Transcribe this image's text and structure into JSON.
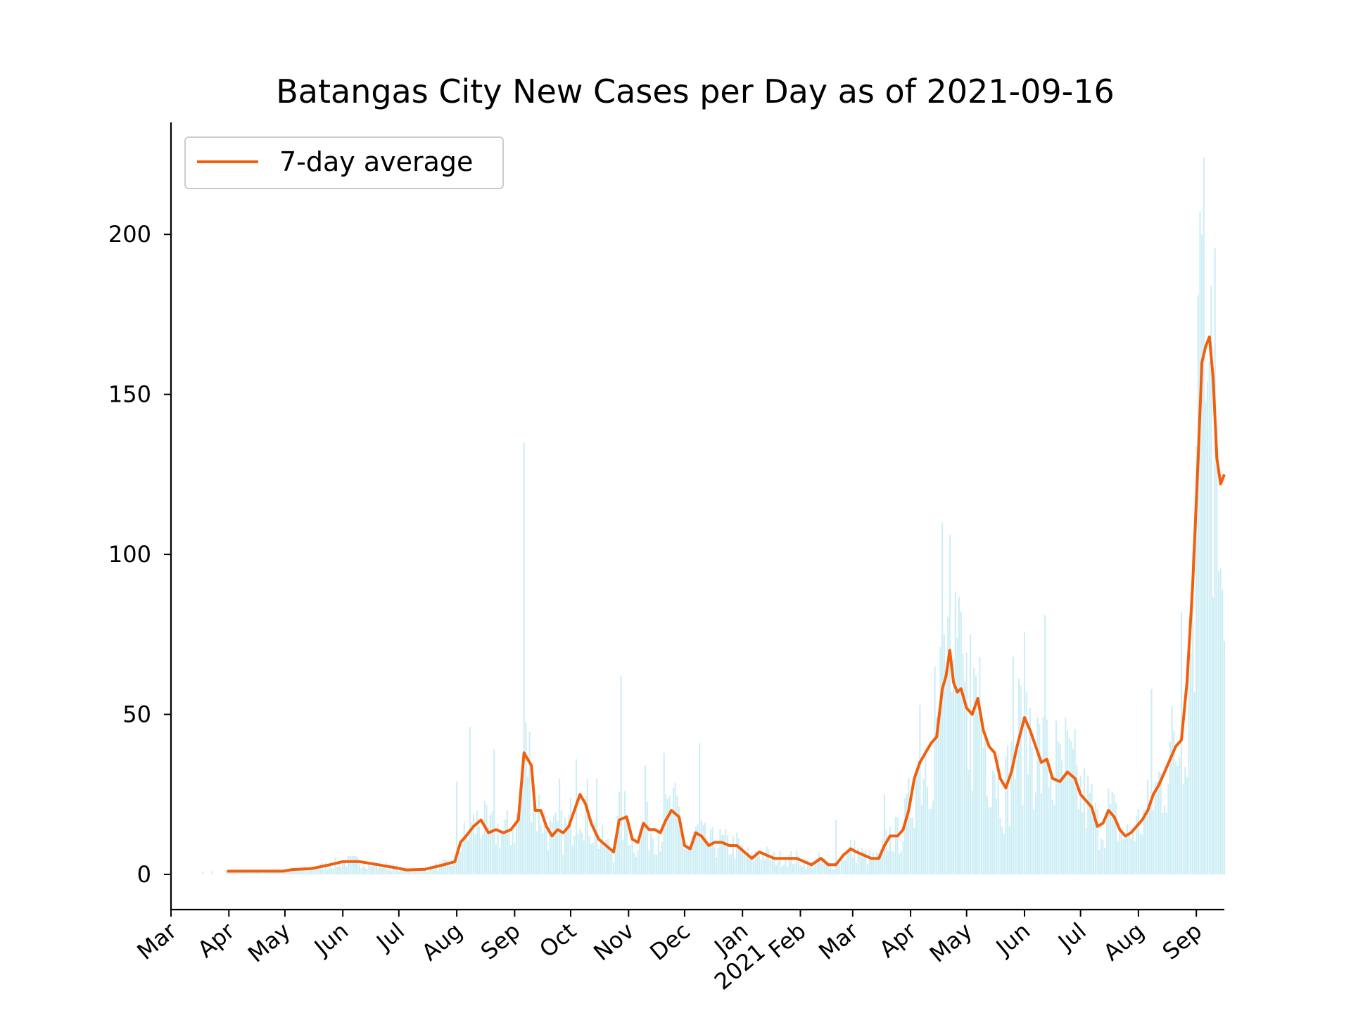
{
  "chart_data": {
    "type": "bar",
    "title": "Batangas City New Cases per Day as of 2021-09-16",
    "xlabel": "",
    "ylabel": "",
    "x_range": [
      "2020-03-01",
      "2021-09-16"
    ],
    "ylim": [
      -11,
      235
    ],
    "y_ticks": [
      0,
      50,
      100,
      150,
      200
    ],
    "x_ticks": [
      {
        "date": "2020-03-01",
        "label": "Mar"
      },
      {
        "date": "2020-04-01",
        "label": "Apr"
      },
      {
        "date": "2020-05-01",
        "label": "May"
      },
      {
        "date": "2020-06-01",
        "label": "Jun"
      },
      {
        "date": "2020-07-01",
        "label": "Jul"
      },
      {
        "date": "2020-08-01",
        "label": "Aug"
      },
      {
        "date": "2020-09-01",
        "label": "Sep"
      },
      {
        "date": "2020-10-01",
        "label": "Oct"
      },
      {
        "date": "2020-11-01",
        "label": "Nov"
      },
      {
        "date": "2020-12-01",
        "label": "Dec"
      },
      {
        "date": "2021-01-01",
        "label": "Jan\n2021"
      },
      {
        "date": "2021-02-01",
        "label": "Feb"
      },
      {
        "date": "2021-03-01",
        "label": "Mar"
      },
      {
        "date": "2021-04-01",
        "label": "Apr"
      },
      {
        "date": "2021-05-01",
        "label": "May"
      },
      {
        "date": "2021-06-01",
        "label": "Jun"
      },
      {
        "date": "2021-07-01",
        "label": "Jul"
      },
      {
        "date": "2021-08-01",
        "label": "Aug"
      },
      {
        "date": "2021-09-01",
        "label": "Sep"
      }
    ],
    "grid": false,
    "legend": {
      "position": "top-left",
      "entries": [
        "7-day average"
      ]
    },
    "colors": {
      "daily_bars": "#cdeef5",
      "average_line": "#f25f0c"
    },
    "series": [
      {
        "name": "7-day average",
        "kind": "line",
        "points": [
          [
            "2020-03-31",
            1
          ],
          [
            "2020-04-15",
            1
          ],
          [
            "2020-04-30",
            1
          ],
          [
            "2020-05-05",
            1.5
          ],
          [
            "2020-05-15",
            1.8
          ],
          [
            "2020-05-25",
            3
          ],
          [
            "2020-06-01",
            4
          ],
          [
            "2020-06-10",
            4
          ],
          [
            "2020-06-20",
            3
          ],
          [
            "2020-06-30",
            2
          ],
          [
            "2020-07-05",
            1.4
          ],
          [
            "2020-07-15",
            1.6
          ],
          [
            "2020-07-25",
            3
          ],
          [
            "2020-07-31",
            4
          ],
          [
            "2020-08-03",
            10
          ],
          [
            "2020-08-06",
            12
          ],
          [
            "2020-08-10",
            15
          ],
          [
            "2020-08-14",
            17
          ],
          [
            "2020-08-18",
            13
          ],
          [
            "2020-08-22",
            14
          ],
          [
            "2020-08-26",
            13
          ],
          [
            "2020-08-30",
            14
          ],
          [
            "2020-09-03",
            17
          ],
          [
            "2020-09-06",
            38
          ],
          [
            "2020-09-08",
            36
          ],
          [
            "2020-09-10",
            34
          ],
          [
            "2020-09-12",
            20
          ],
          [
            "2020-09-15",
            20
          ],
          [
            "2020-09-18",
            15
          ],
          [
            "2020-09-21",
            12
          ],
          [
            "2020-09-24",
            14
          ],
          [
            "2020-09-27",
            13
          ],
          [
            "2020-09-30",
            15
          ],
          [
            "2020-10-03",
            20
          ],
          [
            "2020-10-06",
            25
          ],
          [
            "2020-10-09",
            22
          ],
          [
            "2020-10-12",
            16
          ],
          [
            "2020-10-16",
            11
          ],
          [
            "2020-10-20",
            9
          ],
          [
            "2020-10-24",
            7
          ],
          [
            "2020-10-27",
            17
          ],
          [
            "2020-10-31",
            18
          ],
          [
            "2020-11-03",
            11
          ],
          [
            "2020-11-06",
            10
          ],
          [
            "2020-11-09",
            16
          ],
          [
            "2020-11-12",
            14
          ],
          [
            "2020-11-15",
            14
          ],
          [
            "2020-11-18",
            13
          ],
          [
            "2020-11-21",
            17
          ],
          [
            "2020-11-24",
            20
          ],
          [
            "2020-11-28",
            18
          ],
          [
            "2020-12-01",
            9
          ],
          [
            "2020-12-04",
            8
          ],
          [
            "2020-12-07",
            13
          ],
          [
            "2020-12-10",
            12
          ],
          [
            "2020-12-14",
            9
          ],
          [
            "2020-12-17",
            10
          ],
          [
            "2020-12-21",
            10
          ],
          [
            "2020-12-25",
            9
          ],
          [
            "2020-12-29",
            9
          ],
          [
            "2021-01-02",
            7
          ],
          [
            "2021-01-06",
            5
          ],
          [
            "2021-01-10",
            7
          ],
          [
            "2021-01-14",
            6
          ],
          [
            "2021-01-18",
            5
          ],
          [
            "2021-01-22",
            5
          ],
          [
            "2021-01-26",
            5
          ],
          [
            "2021-01-30",
            5
          ],
          [
            "2021-02-03",
            4
          ],
          [
            "2021-02-07",
            3
          ],
          [
            "2021-02-12",
            5
          ],
          [
            "2021-02-16",
            3
          ],
          [
            "2021-02-20",
            3
          ],
          [
            "2021-02-24",
            6
          ],
          [
            "2021-02-28",
            8
          ],
          [
            "2021-03-03",
            7
          ],
          [
            "2021-03-07",
            6
          ],
          [
            "2021-03-11",
            5
          ],
          [
            "2021-03-15",
            5
          ],
          [
            "2021-03-18",
            9
          ],
          [
            "2021-03-21",
            12
          ],
          [
            "2021-03-25",
            12
          ],
          [
            "2021-03-28",
            14
          ],
          [
            "2021-03-31",
            20
          ],
          [
            "2021-04-03",
            30
          ],
          [
            "2021-04-06",
            35
          ],
          [
            "2021-04-09",
            38
          ],
          [
            "2021-04-12",
            41
          ],
          [
            "2021-04-15",
            43
          ],
          [
            "2021-04-18",
            58
          ],
          [
            "2021-04-20",
            62
          ],
          [
            "2021-04-22",
            70
          ],
          [
            "2021-04-24",
            60
          ],
          [
            "2021-04-26",
            57
          ],
          [
            "2021-04-28",
            58
          ],
          [
            "2021-05-01",
            52
          ],
          [
            "2021-05-04",
            50
          ],
          [
            "2021-05-07",
            55
          ],
          [
            "2021-05-10",
            45
          ],
          [
            "2021-05-13",
            40
          ],
          [
            "2021-05-16",
            38
          ],
          [
            "2021-05-19",
            30
          ],
          [
            "2021-05-22",
            27
          ],
          [
            "2021-05-25",
            32
          ],
          [
            "2021-05-28",
            40
          ],
          [
            "2021-06-01",
            49
          ],
          [
            "2021-06-04",
            45
          ],
          [
            "2021-06-07",
            40
          ],
          [
            "2021-06-10",
            35
          ],
          [
            "2021-06-13",
            36
          ],
          [
            "2021-06-16",
            30
          ],
          [
            "2021-06-20",
            29
          ],
          [
            "2021-06-24",
            32
          ],
          [
            "2021-06-28",
            30
          ],
          [
            "2021-07-01",
            25
          ],
          [
            "2021-07-04",
            23
          ],
          [
            "2021-07-07",
            21
          ],
          [
            "2021-07-10",
            15
          ],
          [
            "2021-07-13",
            16
          ],
          [
            "2021-07-16",
            20
          ],
          [
            "2021-07-19",
            18
          ],
          [
            "2021-07-22",
            14
          ],
          [
            "2021-07-25",
            12
          ],
          [
            "2021-07-28",
            13
          ],
          [
            "2021-07-31",
            15
          ],
          [
            "2021-08-03",
            17
          ],
          [
            "2021-08-06",
            20
          ],
          [
            "2021-08-09",
            25
          ],
          [
            "2021-08-12",
            28
          ],
          [
            "2021-08-15",
            32
          ],
          [
            "2021-08-18",
            36
          ],
          [
            "2021-08-21",
            40
          ],
          [
            "2021-08-24",
            42
          ],
          [
            "2021-08-27",
            60
          ],
          [
            "2021-08-30",
            90
          ],
          [
            "2021-09-02",
            130
          ],
          [
            "2021-09-04",
            160
          ],
          [
            "2021-09-06",
            165
          ],
          [
            "2021-09-08",
            168
          ],
          [
            "2021-09-10",
            155
          ],
          [
            "2021-09-12",
            130
          ],
          [
            "2021-09-14",
            122
          ],
          [
            "2021-09-16",
            125
          ]
        ]
      },
      {
        "name": "",
        "kind": "bars",
        "spikes": [
          [
            "2020-08-01",
            29
          ],
          [
            "2020-08-08",
            46
          ],
          [
            "2020-08-21",
            39
          ],
          [
            "2020-09-06",
            135
          ],
          [
            "2020-09-25",
            30
          ],
          [
            "2020-10-04",
            36
          ],
          [
            "2020-10-15",
            30
          ],
          [
            "2020-10-28",
            62
          ],
          [
            "2020-11-10",
            34
          ],
          [
            "2020-11-20",
            38
          ],
          [
            "2020-12-09",
            41
          ],
          [
            "2021-02-20",
            17
          ],
          [
            "2021-03-18",
            25
          ],
          [
            "2021-04-06",
            53
          ],
          [
            "2021-04-14",
            65
          ],
          [
            "2021-04-18",
            110
          ],
          [
            "2021-04-22",
            106
          ],
          [
            "2021-04-28",
            82
          ],
          [
            "2021-05-03",
            75
          ],
          [
            "2021-05-08",
            68
          ],
          [
            "2021-05-26",
            68
          ],
          [
            "2021-06-02",
            57
          ],
          [
            "2021-06-12",
            81
          ],
          [
            "2021-06-18",
            48
          ],
          [
            "2021-06-23",
            49
          ],
          [
            "2021-08-08",
            58
          ],
          [
            "2021-08-24",
            82
          ],
          [
            "2021-08-30",
            101
          ],
          [
            "2021-09-02",
            181
          ],
          [
            "2021-09-03",
            207
          ],
          [
            "2021-09-04",
            200
          ],
          [
            "2021-09-05",
            224
          ],
          [
            "2021-09-07",
            154
          ],
          [
            "2021-09-09",
            184
          ],
          [
            "2021-09-12",
            140
          ],
          [
            "2021-09-15",
            89
          ]
        ]
      }
    ]
  }
}
